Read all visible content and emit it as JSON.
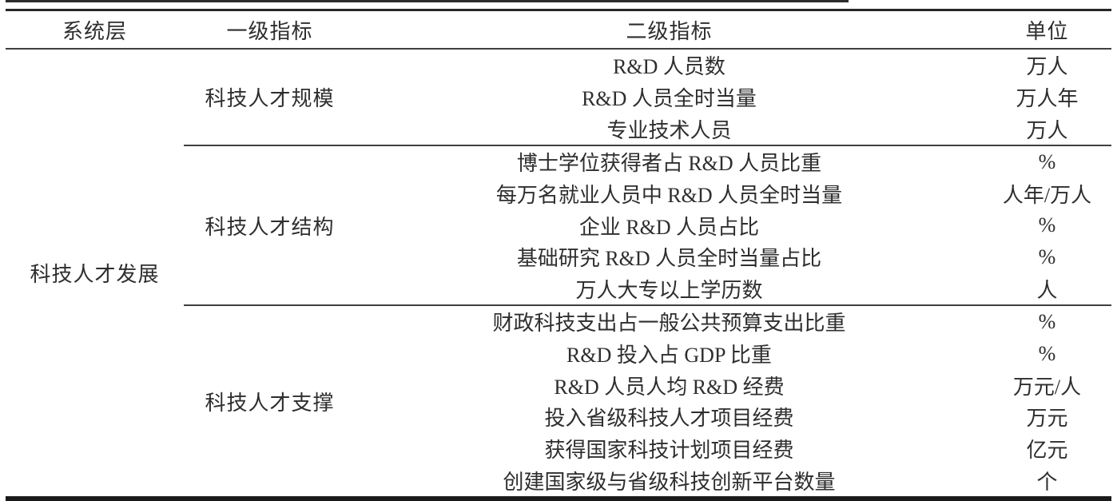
{
  "table": {
    "headers": {
      "system_layer": "系统层",
      "level1": "一级指标",
      "level2": "二级指标",
      "unit": "单位"
    },
    "system_layer": "科技人才发展",
    "blocks": [
      {
        "level1": "科技人才规模",
        "rows": [
          {
            "indicator": "R&D 人员数",
            "unit": "万人"
          },
          {
            "indicator": "R&D 人员全时当量",
            "unit": "万人年"
          },
          {
            "indicator": "专业技术人员",
            "unit": "万人"
          }
        ]
      },
      {
        "level1": "科技人才结构",
        "rows": [
          {
            "indicator": "博士学位获得者占 R&D 人员比重",
            "unit": "%"
          },
          {
            "indicator": "每万名就业人员中 R&D 人员全时当量",
            "unit": "人年/万人"
          },
          {
            "indicator": "企业 R&D 人员占比",
            "unit": "%"
          },
          {
            "indicator": "基础研究 R&D 人员全时当量占比",
            "unit": "%"
          },
          {
            "indicator": "万人大专以上学历数",
            "unit": "人"
          }
        ]
      },
      {
        "level1": "科技人才支撑",
        "rows": [
          {
            "indicator": "财政科技支出占一般公共预算支出比重",
            "unit": "%"
          },
          {
            "indicator": "R&D 投入占 GDP 比重",
            "unit": "%"
          },
          {
            "indicator": "R&D 人员人均 R&D 经费",
            "unit": "万元/人"
          },
          {
            "indicator": "投入省级科技人才项目经费",
            "unit": "万元"
          },
          {
            "indicator": "获得国家科技计划项目经费",
            "unit": "亿元"
          },
          {
            "indicator": "创建国家级与省级科技创新平台数量",
            "unit": "个"
          }
        ]
      }
    ],
    "colors": {
      "text": "#2e2e2e",
      "thick_rule": "#1a1a1a",
      "thin_rule": "#3f3f3f"
    }
  }
}
